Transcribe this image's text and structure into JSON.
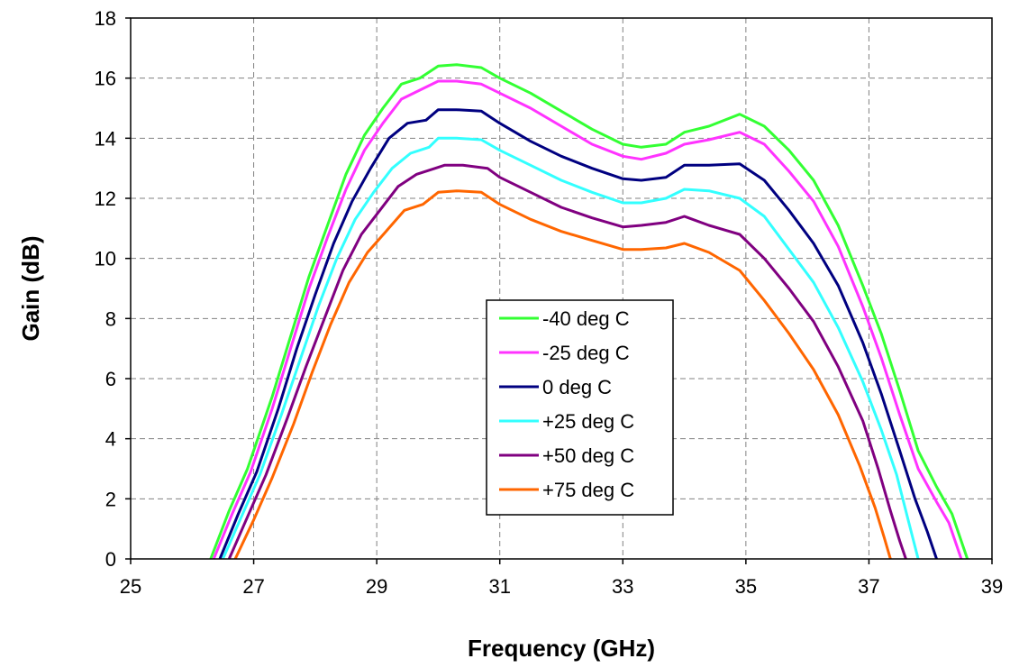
{
  "chart_data": {
    "type": "line",
    "xlabel": "Frequency (GHz)",
    "ylabel": "Gain (dB)",
    "xlim": [
      25,
      39
    ],
    "ylim": [
      0,
      18
    ],
    "xticks": [
      25,
      27,
      29,
      31,
      33,
      35,
      37,
      39
    ],
    "yticks": [
      0,
      2,
      4,
      6,
      8,
      10,
      12,
      14,
      16,
      18
    ],
    "grid": true,
    "legend_position": "center",
    "series": [
      {
        "name": "-40 deg C",
        "color": "#33ff33",
        "points": [
          [
            26.3,
            0
          ],
          [
            26.6,
            1.6
          ],
          [
            26.9,
            3.0
          ],
          [
            27.3,
            5.4
          ],
          [
            27.6,
            7.4
          ],
          [
            27.9,
            9.4
          ],
          [
            28.2,
            11.1
          ],
          [
            28.5,
            12.8
          ],
          [
            28.8,
            14.1
          ],
          [
            29.1,
            15.0
          ],
          [
            29.4,
            15.8
          ],
          [
            29.7,
            16.0
          ],
          [
            30.0,
            16.4
          ],
          [
            30.3,
            16.45
          ],
          [
            30.7,
            16.35
          ],
          [
            31.0,
            16.0
          ],
          [
            31.5,
            15.5
          ],
          [
            32.0,
            14.9
          ],
          [
            32.5,
            14.3
          ],
          [
            33.0,
            13.8
          ],
          [
            33.3,
            13.7
          ],
          [
            33.7,
            13.8
          ],
          [
            34.0,
            14.2
          ],
          [
            34.4,
            14.4
          ],
          [
            34.9,
            14.8
          ],
          [
            35.3,
            14.4
          ],
          [
            35.7,
            13.6
          ],
          [
            36.1,
            12.6
          ],
          [
            36.5,
            11.1
          ],
          [
            36.9,
            9.1
          ],
          [
            37.2,
            7.5
          ],
          [
            37.5,
            5.6
          ],
          [
            37.8,
            3.6
          ],
          [
            38.1,
            2.4
          ],
          [
            38.35,
            1.5
          ],
          [
            38.6,
            0
          ]
        ]
      },
      {
        "name": "-25 deg C",
        "color": "#ff33ff",
        "points": [
          [
            26.35,
            0
          ],
          [
            26.65,
            1.5
          ],
          [
            26.95,
            2.9
          ],
          [
            27.3,
            5.0
          ],
          [
            27.6,
            7.0
          ],
          [
            27.9,
            9.0
          ],
          [
            28.2,
            10.7
          ],
          [
            28.5,
            12.3
          ],
          [
            28.8,
            13.6
          ],
          [
            29.1,
            14.5
          ],
          [
            29.4,
            15.3
          ],
          [
            29.7,
            15.6
          ],
          [
            30.0,
            15.9
          ],
          [
            30.3,
            15.9
          ],
          [
            30.7,
            15.8
          ],
          [
            31.0,
            15.5
          ],
          [
            31.5,
            15.0
          ],
          [
            32.0,
            14.4
          ],
          [
            32.5,
            13.8
          ],
          [
            33.0,
            13.4
          ],
          [
            33.3,
            13.3
          ],
          [
            33.7,
            13.5
          ],
          [
            34.0,
            13.8
          ],
          [
            34.4,
            13.95
          ],
          [
            34.9,
            14.2
          ],
          [
            35.3,
            13.8
          ],
          [
            35.7,
            12.9
          ],
          [
            36.1,
            11.9
          ],
          [
            36.5,
            10.4
          ],
          [
            36.9,
            8.4
          ],
          [
            37.2,
            6.7
          ],
          [
            37.5,
            4.8
          ],
          [
            37.8,
            3.0
          ],
          [
            38.1,
            1.9
          ],
          [
            38.3,
            1.2
          ],
          [
            38.5,
            0
          ]
        ]
      },
      {
        "name": "0 deg C",
        "color": "#000080",
        "points": [
          [
            26.45,
            0
          ],
          [
            26.75,
            1.5
          ],
          [
            27.05,
            2.9
          ],
          [
            27.4,
            5.0
          ],
          [
            27.7,
            7.0
          ],
          [
            28.0,
            8.8
          ],
          [
            28.3,
            10.5
          ],
          [
            28.6,
            11.9
          ],
          [
            28.9,
            13.0
          ],
          [
            29.2,
            14.0
          ],
          [
            29.5,
            14.5
          ],
          [
            29.8,
            14.6
          ],
          [
            30.0,
            14.95
          ],
          [
            30.3,
            14.95
          ],
          [
            30.7,
            14.9
          ],
          [
            31.0,
            14.5
          ],
          [
            31.5,
            13.9
          ],
          [
            32.0,
            13.4
          ],
          [
            32.5,
            13.0
          ],
          [
            33.0,
            12.65
          ],
          [
            33.3,
            12.6
          ],
          [
            33.7,
            12.7
          ],
          [
            34.0,
            13.1
          ],
          [
            34.4,
            13.1
          ],
          [
            34.9,
            13.15
          ],
          [
            35.3,
            12.6
          ],
          [
            35.7,
            11.6
          ],
          [
            36.1,
            10.5
          ],
          [
            36.5,
            9.1
          ],
          [
            36.9,
            7.2
          ],
          [
            37.2,
            5.5
          ],
          [
            37.5,
            3.6
          ],
          [
            37.75,
            2.0
          ],
          [
            37.95,
            0.9
          ],
          [
            38.1,
            0
          ]
        ]
      },
      {
        "name": "+25 deg C",
        "color": "#33ffff",
        "points": [
          [
            26.5,
            0
          ],
          [
            26.8,
            1.4
          ],
          [
            27.1,
            2.8
          ],
          [
            27.45,
            4.8
          ],
          [
            27.75,
            6.6
          ],
          [
            28.05,
            8.4
          ],
          [
            28.35,
            10.0
          ],
          [
            28.65,
            11.3
          ],
          [
            28.95,
            12.2
          ],
          [
            29.25,
            13.0
          ],
          [
            29.55,
            13.5
          ],
          [
            29.85,
            13.7
          ],
          [
            30.0,
            14.0
          ],
          [
            30.3,
            14.0
          ],
          [
            30.7,
            13.95
          ],
          [
            31.0,
            13.6
          ],
          [
            31.5,
            13.1
          ],
          [
            32.0,
            12.6
          ],
          [
            32.5,
            12.2
          ],
          [
            33.0,
            11.85
          ],
          [
            33.3,
            11.85
          ],
          [
            33.7,
            12.0
          ],
          [
            34.0,
            12.3
          ],
          [
            34.4,
            12.25
          ],
          [
            34.9,
            12.0
          ],
          [
            35.3,
            11.4
          ],
          [
            35.7,
            10.3
          ],
          [
            36.1,
            9.2
          ],
          [
            36.5,
            7.7
          ],
          [
            36.9,
            5.9
          ],
          [
            37.2,
            4.3
          ],
          [
            37.45,
            2.8
          ],
          [
            37.65,
            1.2
          ],
          [
            37.8,
            0
          ]
        ]
      },
      {
        "name": "+50 deg C",
        "color": "#800080",
        "points": [
          [
            26.6,
            0
          ],
          [
            26.9,
            1.4
          ],
          [
            27.2,
            2.8
          ],
          [
            27.55,
            4.7
          ],
          [
            27.85,
            6.4
          ],
          [
            28.15,
            8.0
          ],
          [
            28.45,
            9.6
          ],
          [
            28.75,
            10.8
          ],
          [
            29.05,
            11.6
          ],
          [
            29.35,
            12.4
          ],
          [
            29.65,
            12.8
          ],
          [
            29.95,
            13.0
          ],
          [
            30.1,
            13.1
          ],
          [
            30.4,
            13.1
          ],
          [
            30.8,
            13.0
          ],
          [
            31.0,
            12.7
          ],
          [
            31.5,
            12.2
          ],
          [
            32.0,
            11.7
          ],
          [
            32.5,
            11.35
          ],
          [
            33.0,
            11.05
          ],
          [
            33.3,
            11.1
          ],
          [
            33.7,
            11.2
          ],
          [
            34.0,
            11.4
          ],
          [
            34.4,
            11.1
          ],
          [
            34.9,
            10.8
          ],
          [
            35.3,
            10.0
          ],
          [
            35.7,
            9.0
          ],
          [
            36.1,
            7.9
          ],
          [
            36.5,
            6.4
          ],
          [
            36.9,
            4.6
          ],
          [
            37.15,
            3.0
          ],
          [
            37.35,
            1.6
          ],
          [
            37.5,
            0.6
          ],
          [
            37.6,
            0
          ]
        ]
      },
      {
        "name": "+75 deg C",
        "color": "#ff6600",
        "points": [
          [
            26.7,
            0
          ],
          [
            27.0,
            1.3
          ],
          [
            27.3,
            2.7
          ],
          [
            27.65,
            4.5
          ],
          [
            27.95,
            6.2
          ],
          [
            28.25,
            7.8
          ],
          [
            28.55,
            9.2
          ],
          [
            28.85,
            10.2
          ],
          [
            29.15,
            10.9
          ],
          [
            29.45,
            11.6
          ],
          [
            29.75,
            11.8
          ],
          [
            30.0,
            12.2
          ],
          [
            30.3,
            12.25
          ],
          [
            30.7,
            12.2
          ],
          [
            31.0,
            11.8
          ],
          [
            31.5,
            11.3
          ],
          [
            32.0,
            10.9
          ],
          [
            32.5,
            10.6
          ],
          [
            33.0,
            10.3
          ],
          [
            33.3,
            10.3
          ],
          [
            33.7,
            10.35
          ],
          [
            34.0,
            10.5
          ],
          [
            34.4,
            10.2
          ],
          [
            34.9,
            9.6
          ],
          [
            35.3,
            8.6
          ],
          [
            35.7,
            7.5
          ],
          [
            36.1,
            6.3
          ],
          [
            36.5,
            4.8
          ],
          [
            36.85,
            3.1
          ],
          [
            37.1,
            1.7
          ],
          [
            37.25,
            0.7
          ],
          [
            37.35,
            0
          ]
        ]
      }
    ]
  }
}
